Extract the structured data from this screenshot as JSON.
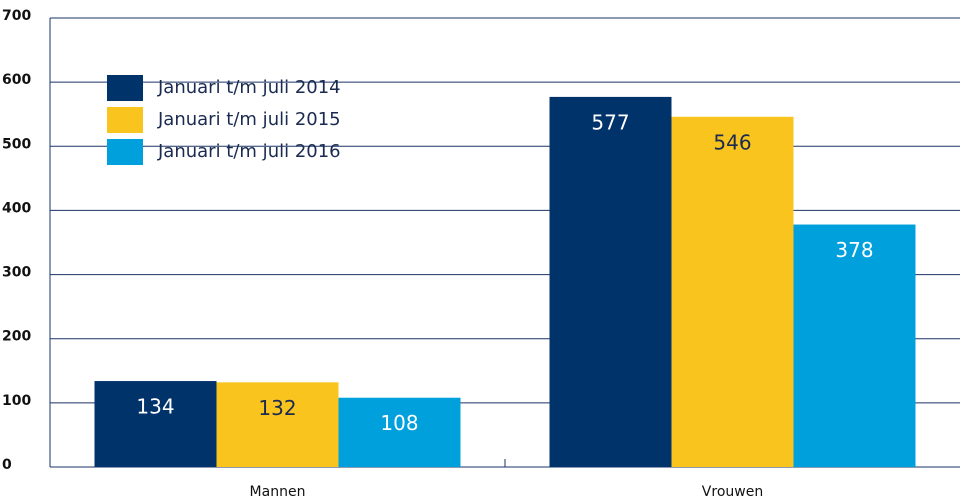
{
  "chart_data": {
    "type": "bar",
    "categories": [
      "Mannen",
      "Vrouwen"
    ],
    "series": [
      {
        "name": "Januari t/m juli 2014",
        "color": "#003369",
        "values": [
          134,
          577
        ]
      },
      {
        "name": "Januari t/m juli 2015",
        "color": "#f9c41e",
        "values": [
          132,
          546
        ]
      },
      {
        "name": "Januari t/m juli 2016",
        "color": "#00a0dc",
        "values": [
          108,
          378
        ]
      }
    ],
    "ylim": [
      0,
      700
    ],
    "yticks": [
      0,
      100,
      200,
      300,
      400,
      500,
      600,
      700
    ],
    "grid": true,
    "legend": "top-left"
  }
}
